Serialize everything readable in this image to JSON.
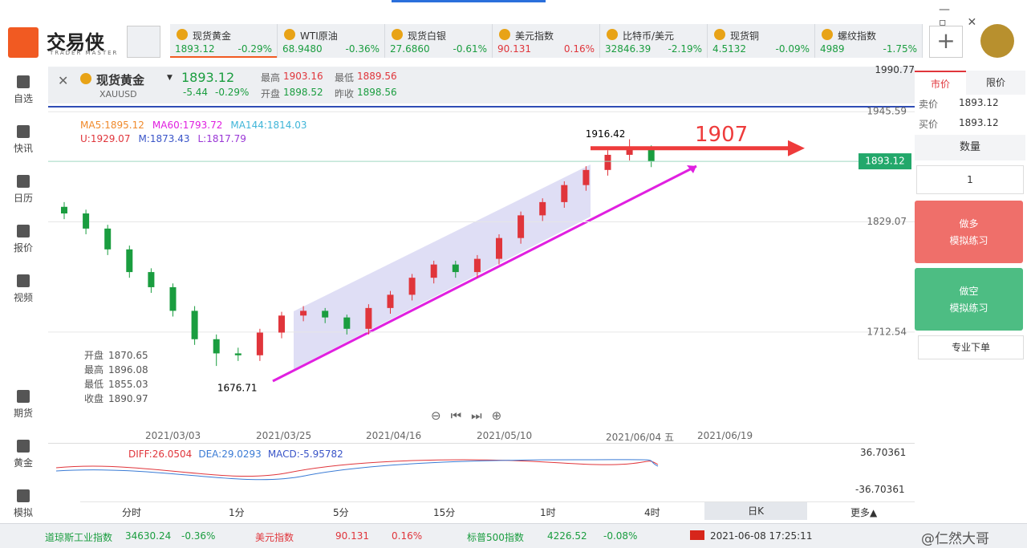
{
  "app": {
    "logo": "交易侠",
    "logo_sub": "TRADER MASTER"
  },
  "tickers": [
    {
      "name": "现货黄金",
      "price": "1893.12",
      "change": "-0.29%"
    },
    {
      "name": "WTI原油",
      "price": "68.9480",
      "change": "-0.36%"
    },
    {
      "name": "现货白银",
      "price": "27.6860",
      "change": "-0.61%"
    },
    {
      "name": "美元指数",
      "price": "90.131",
      "change": "0.16%"
    },
    {
      "name": "比特币/美元",
      "price": "32846.39",
      "change": "-2.19%"
    },
    {
      "name": "现货铜",
      "price": "4.5132",
      "change": "-0.09%"
    },
    {
      "name": "螺纹指数",
      "price": "4989",
      "change": "-1.75%"
    }
  ],
  "nav_top": [
    "自选",
    "快讯",
    "日历",
    "报价",
    "视频"
  ],
  "nav_bottom": [
    "期货",
    "黄金",
    "模拟"
  ],
  "quote": {
    "name": "现货黄金",
    "code": "XAUUSD",
    "price": "1893.12",
    "change": "-5.44",
    "pct": "-0.29%",
    "stats": [
      {
        "label": "最高",
        "value": "1903.16"
      },
      {
        "label": "开盘",
        "value": "1898.52"
      },
      {
        "label": "最低",
        "value": "1889.56"
      },
      {
        "label": "昨收",
        "value": "1898.56"
      }
    ]
  },
  "indicators": [
    [
      "MA5:1895.12",
      "MA60:1793.72",
      "MA144:1814.03"
    ],
    [
      "U:1929.07",
      "M:1873.43",
      "L:1817.79"
    ]
  ],
  "ohlc_box": [
    {
      "label": "开盘",
      "value": "1870.65"
    },
    {
      "label": "最高",
      "value": "1896.08"
    },
    {
      "label": "最低",
      "value": "1855.03"
    },
    {
      "label": "收盘",
      "value": "1890.97"
    }
  ],
  "chart_data": {
    "type": "candlestick",
    "open": [
      1845,
      1838,
      1822,
      1800,
      1776,
      1760,
      1735,
      1705,
      1690,
      1688,
      1712,
      1730,
      1735,
      1728,
      1716,
      1738,
      1752,
      1770,
      1784,
      1776,
      1790,
      1812,
      1836,
      1850,
      1868,
      1884,
      1900,
      1906
    ],
    "high": [
      1850,
      1842,
      1826,
      1804,
      1780,
      1764,
      1740,
      1710,
      1696,
      1716,
      1734,
      1740,
      1738,
      1731,
      1742,
      1756,
      1774,
      1788,
      1788,
      1794,
      1816,
      1840,
      1854,
      1872,
      1888,
      1905,
      1916.42,
      1910
    ],
    "low": [
      1832,
      1816,
      1794,
      1770,
      1754,
      1729,
      1699,
      1676.71,
      1682,
      1682,
      1706,
      1724,
      1722,
      1710,
      1710,
      1732,
      1746,
      1764,
      1770,
      1770,
      1784,
      1806,
      1830,
      1844,
      1862,
      1878,
      1894,
      1887
    ],
    "close": [
      1838,
      1822,
      1800,
      1776,
      1760,
      1735,
      1705,
      1690,
      1688,
      1712,
      1730,
      1735,
      1728,
      1716,
      1738,
      1752,
      1770,
      1784,
      1776,
      1790,
      1812,
      1836,
      1850,
      1868,
      1884,
      1900,
      1906,
      1893
    ],
    "up_color": "#e0353b",
    "down_color": "#1a9d3f",
    "ylim": [
      1614,
      1990.77
    ],
    "yticks": [
      1712.54,
      1829.07,
      1945.59,
      1990.77
    ],
    "x_labels": [
      "2021/03/03",
      "2021/03/25",
      "2021/04/16",
      "2021/05/10",
      "2021/06/04 五",
      "2021/06/19"
    ],
    "low_label": "1676.71",
    "high_label": "1916.42",
    "target": 1907,
    "last_price": 1893.12
  },
  "macd": {
    "labels": [
      "DIFF:26.0504",
      "DEA:29.0293",
      "MACD:-5.95782"
    ],
    "top": "36.70361",
    "bottom": "-36.70361"
  },
  "timeframes": [
    "分时",
    "1分",
    "5分",
    "15分",
    "1时",
    "4时",
    "日K",
    "更多▲"
  ],
  "order": {
    "tabs": [
      "市价",
      "限价"
    ],
    "sell_label": "卖价",
    "sell": "1893.12",
    "buy_label": "买价",
    "buy": "1893.12",
    "qty_label": "数量",
    "qty": "1",
    "long": "做多",
    "long_sub": "模拟练习",
    "short": "做空",
    "short_sub": "模拟练习",
    "pro": "专业下单"
  },
  "footer": {
    "items": [
      {
        "name": "道琼斯工业指数",
        "price": "34630.24",
        "change": "-0.36%"
      },
      {
        "name": "美元指数",
        "price": "90.131",
        "change": "0.16%"
      },
      {
        "name": "标普500指数",
        "price": "4226.52",
        "change": "-0.08%"
      }
    ],
    "datetime": "2021-06-08 17:25:11",
    "watermark": "@仁然大哥"
  }
}
